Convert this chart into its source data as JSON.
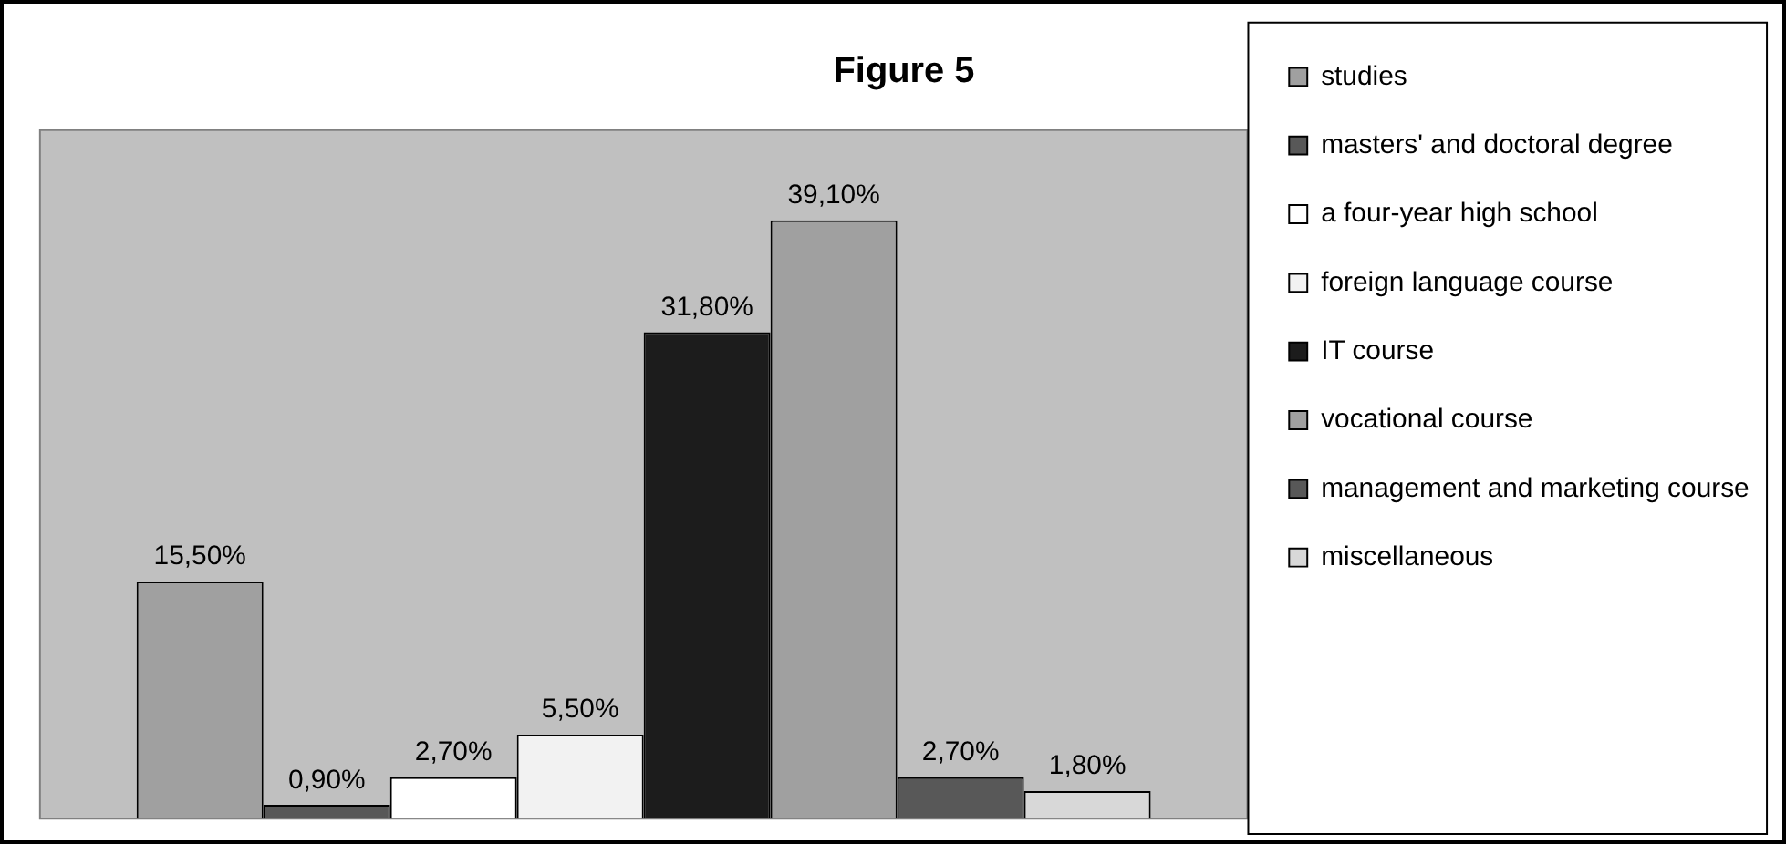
{
  "chart_data": {
    "type": "bar",
    "title": "Figure 5",
    "categories": [
      null
    ],
    "legend": "right",
    "series": [
      {
        "name": "studies",
        "color": "#a0a0a0",
        "values": [
          15.5
        ],
        "value_labels": [
          "15,50%"
        ]
      },
      {
        "name": "masters' and doctoral degree",
        "color": "#585858",
        "values": [
          0.9
        ],
        "value_labels": [
          "0,90%"
        ]
      },
      {
        "name": "a four-year high school",
        "color": "#ffffff",
        "values": [
          2.7
        ],
        "value_labels": [
          "2,70%"
        ]
      },
      {
        "name": "foreign language course",
        "color": "#f2f2f2",
        "values": [
          5.5
        ],
        "value_labels": [
          "5,50%"
        ]
      },
      {
        "name": "IT course",
        "color": "#1c1c1c",
        "values": [
          31.8
        ],
        "value_labels": [
          "31,80%"
        ]
      },
      {
        "name": "vocational course",
        "color": "#a0a0a0",
        "values": [
          39.1
        ],
        "value_labels": [
          "39,10%"
        ]
      },
      {
        "name": "management and marketing course",
        "color": "#585858",
        "values": [
          2.7
        ],
        "value_labels": [
          "2,70%"
        ]
      },
      {
        "name": "miscellaneous",
        "color": "#d8d8d8",
        "values": [
          1.8
        ],
        "value_labels": [
          "1,80%"
        ]
      }
    ]
  }
}
